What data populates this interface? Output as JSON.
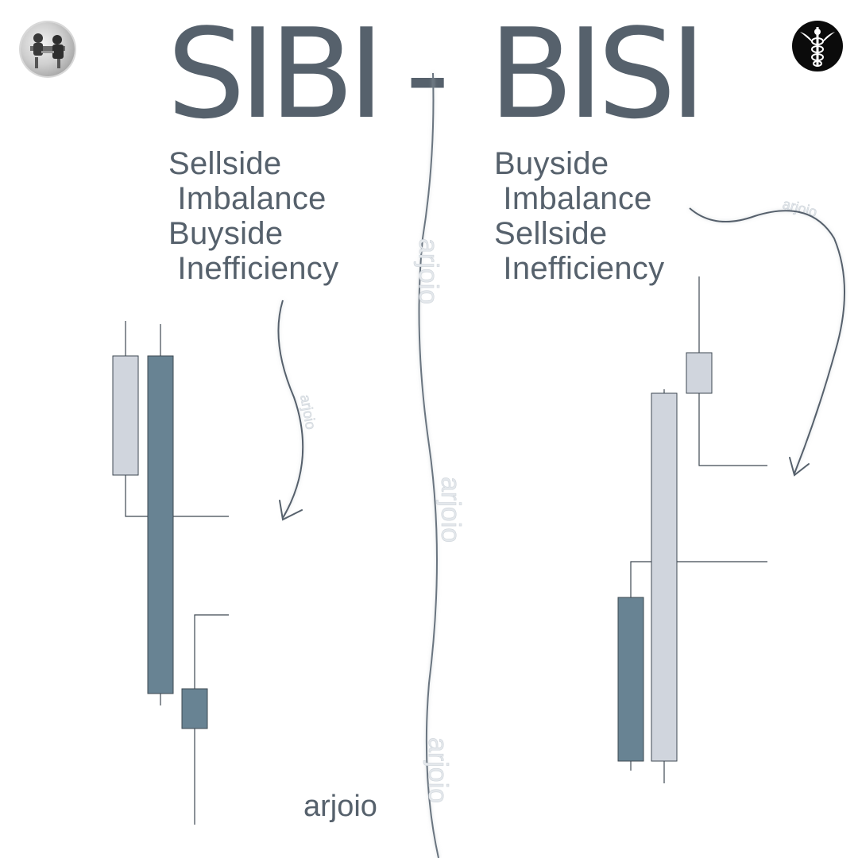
{
  "title": {
    "left": "SIBI",
    "separator": "-",
    "right": "BISI"
  },
  "sibi": {
    "lines": [
      "Sellside",
      " Imbalance",
      "Buyside",
      " Inefficiency"
    ]
  },
  "bisi": {
    "lines": [
      "Buyside",
      " Imbalance",
      "Sellside",
      " Inefficiency"
    ]
  },
  "brand": "arjoio",
  "watermark": "arjoio",
  "colors": {
    "text": "#56616c",
    "bearish_candle": "#688393",
    "bullish_candle": "#d0d5dd",
    "wick": "#3e4852",
    "background": "#ffffff"
  },
  "icons": {
    "top_left": "chess-players-photo-icon",
    "top_right": "caduceus-emblem-icon"
  }
}
